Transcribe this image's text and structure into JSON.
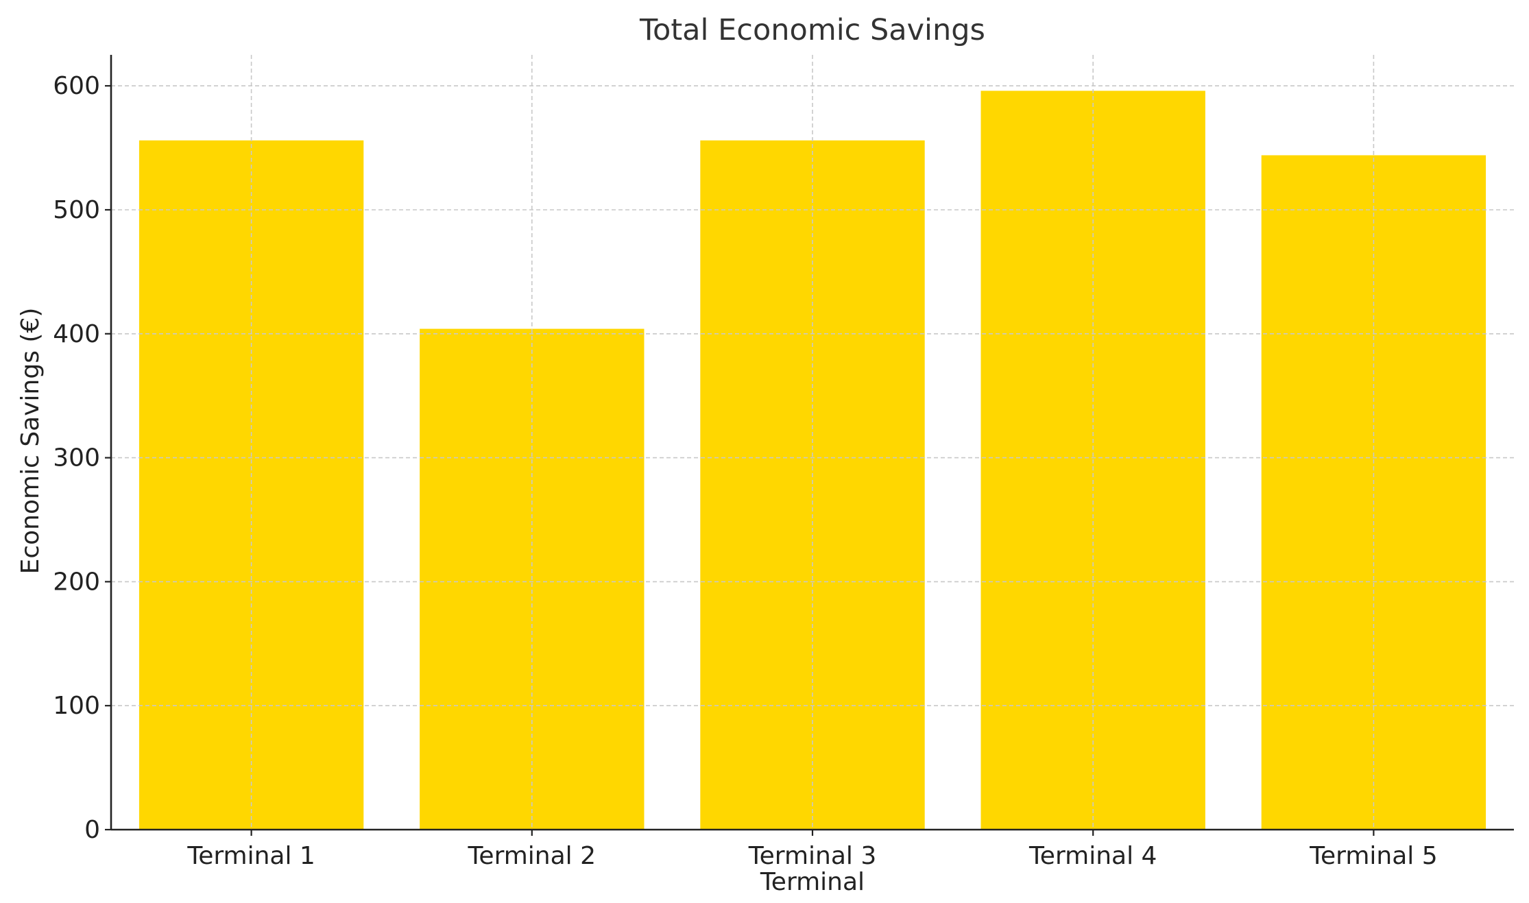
{
  "chart_data": {
    "type": "bar",
    "title": "Total Economic Savings",
    "xlabel": "Terminal",
    "ylabel": "Economic Savings (€)",
    "categories": [
      "Terminal 1",
      "Terminal 2",
      "Terminal 3",
      "Terminal 4",
      "Terminal 5"
    ],
    "values": [
      556,
      404,
      556,
      596,
      544
    ],
    "ylim": [
      0,
      625
    ],
    "yticks": [
      0,
      100,
      200,
      300,
      400,
      500,
      600
    ],
    "grid": true,
    "bar_color": "#FFD700",
    "grid_color": "#c8c8c8"
  }
}
